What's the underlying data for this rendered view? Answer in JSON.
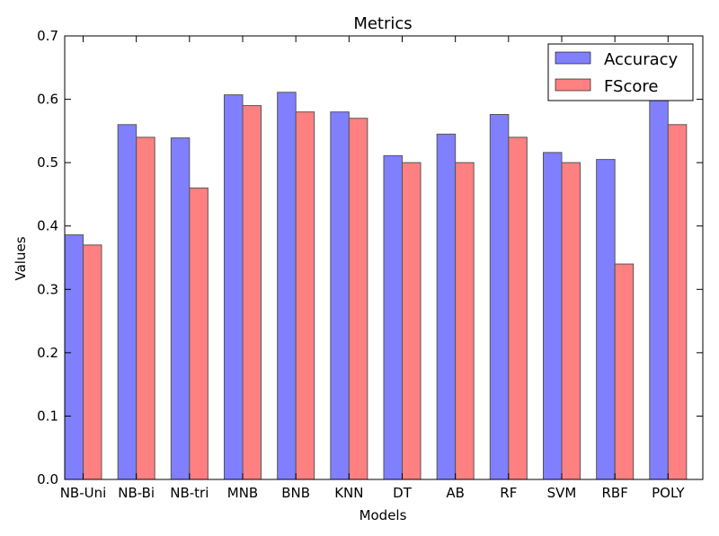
{
  "chart_data": {
    "type": "bar",
    "title": "Metrics",
    "xlabel": "Models",
    "ylabel": "Values",
    "ylim": [
      0,
      0.7
    ],
    "yticks": [
      "0.0",
      "0.1",
      "0.2",
      "0.3",
      "0.4",
      "0.5",
      "0.6",
      "0.7"
    ],
    "grid": false,
    "legend_position": "top-right",
    "categories": [
      "NB-Uni",
      "NB-Bi",
      "NB-tri",
      "MNB",
      "BNB",
      "KNN",
      "DT",
      "AB",
      "RF",
      "SVM",
      "RBF",
      "POLY"
    ],
    "series": [
      {
        "name": "Accuracy",
        "color": "#8080ff",
        "values": [
          0.386,
          0.56,
          0.539,
          0.607,
          0.611,
          0.58,
          0.511,
          0.545,
          0.576,
          0.516,
          0.505,
          0.6
        ]
      },
      {
        "name": "FScore",
        "color": "#ff8080",
        "values": [
          0.37,
          0.54,
          0.46,
          0.59,
          0.58,
          0.57,
          0.5,
          0.5,
          0.54,
          0.5,
          0.34,
          0.56
        ]
      }
    ]
  }
}
